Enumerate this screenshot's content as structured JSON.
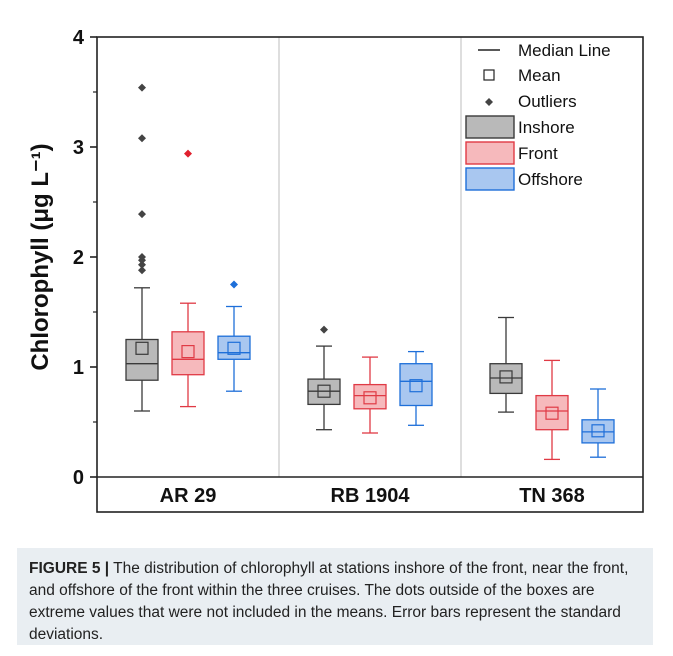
{
  "chart_data": {
    "type": "box",
    "ylabel": "Chlorophyll (μg L⁻¹)",
    "ylim": [
      0,
      4
    ],
    "y_ticks": [
      "0",
      "1",
      "2",
      "3",
      "4"
    ],
    "categories": [
      "AR 29",
      "RB 1904",
      "TN 368"
    ],
    "legend": {
      "placement": "top-right",
      "entries": {
        "median": "Median Line",
        "mean": "Mean",
        "outliers": "Outliers",
        "inshore": "Inshore",
        "front": "Front",
        "offshore": "Offshore"
      }
    },
    "colors": {
      "inshore_fill": "#b9b9b9",
      "inshore_stroke": "#3a3a3a",
      "front_fill": "#f6b9bc",
      "front_stroke": "#e03a45",
      "offshore_fill": "#a9c7f0",
      "offshore_stroke": "#1e6fd9",
      "outlier_inshore": "#444444",
      "outlier_front": "#e0202e",
      "outlier_offshore": "#1e6fd9"
    },
    "series": [
      {
        "name": "Inshore",
        "boxes": [
          {
            "whisker_low": 0.6,
            "q1": 0.88,
            "median": 1.03,
            "q3": 1.25,
            "whisker_high": 1.72,
            "mean": 1.17,
            "outliers": [
              1.88,
              1.93,
              1.97,
              2.0,
              2.39,
              3.08,
              3.54
            ]
          },
          {
            "whisker_low": 0.43,
            "q1": 0.66,
            "median": 0.78,
            "q3": 0.89,
            "whisker_high": 1.19,
            "mean": 0.78,
            "outliers": [
              1.34
            ]
          },
          {
            "whisker_low": 0.59,
            "q1": 0.76,
            "median": 0.9,
            "q3": 1.03,
            "whisker_high": 1.45,
            "mean": 0.91,
            "outliers": []
          }
        ]
      },
      {
        "name": "Front",
        "boxes": [
          {
            "whisker_low": 0.64,
            "q1": 0.93,
            "median": 1.07,
            "q3": 1.32,
            "whisker_high": 1.58,
            "mean": 1.14,
            "outliers": [
              2.94
            ]
          },
          {
            "whisker_low": 0.4,
            "q1": 0.62,
            "median": 0.74,
            "q3": 0.84,
            "whisker_high": 1.09,
            "mean": 0.72,
            "outliers": []
          },
          {
            "whisker_low": 0.16,
            "q1": 0.43,
            "median": 0.6,
            "q3": 0.74,
            "whisker_high": 1.06,
            "mean": 0.58,
            "outliers": []
          }
        ]
      },
      {
        "name": "Offshore",
        "boxes": [
          {
            "whisker_low": 0.78,
            "q1": 1.07,
            "median": 1.13,
            "q3": 1.28,
            "whisker_high": 1.55,
            "mean": 1.17,
            "outliers": [
              1.75
            ]
          },
          {
            "whisker_low": 0.47,
            "q1": 0.65,
            "median": 0.87,
            "q3": 1.03,
            "whisker_high": 1.14,
            "mean": 0.83,
            "outliers": []
          },
          {
            "whisker_low": 0.18,
            "q1": 0.31,
            "median": 0.41,
            "q3": 0.52,
            "whisker_high": 0.8,
            "mean": 0.42,
            "outliers": []
          }
        ]
      }
    ]
  },
  "caption": {
    "label": "FIGURE 5 |",
    "text": " The distribution of chlorophyll at stations inshore of the front, near the front, and offshore of the front within the three cruises. The dots outside of the boxes are extreme values that were not included in the means. Error bars represent the standard deviations."
  }
}
